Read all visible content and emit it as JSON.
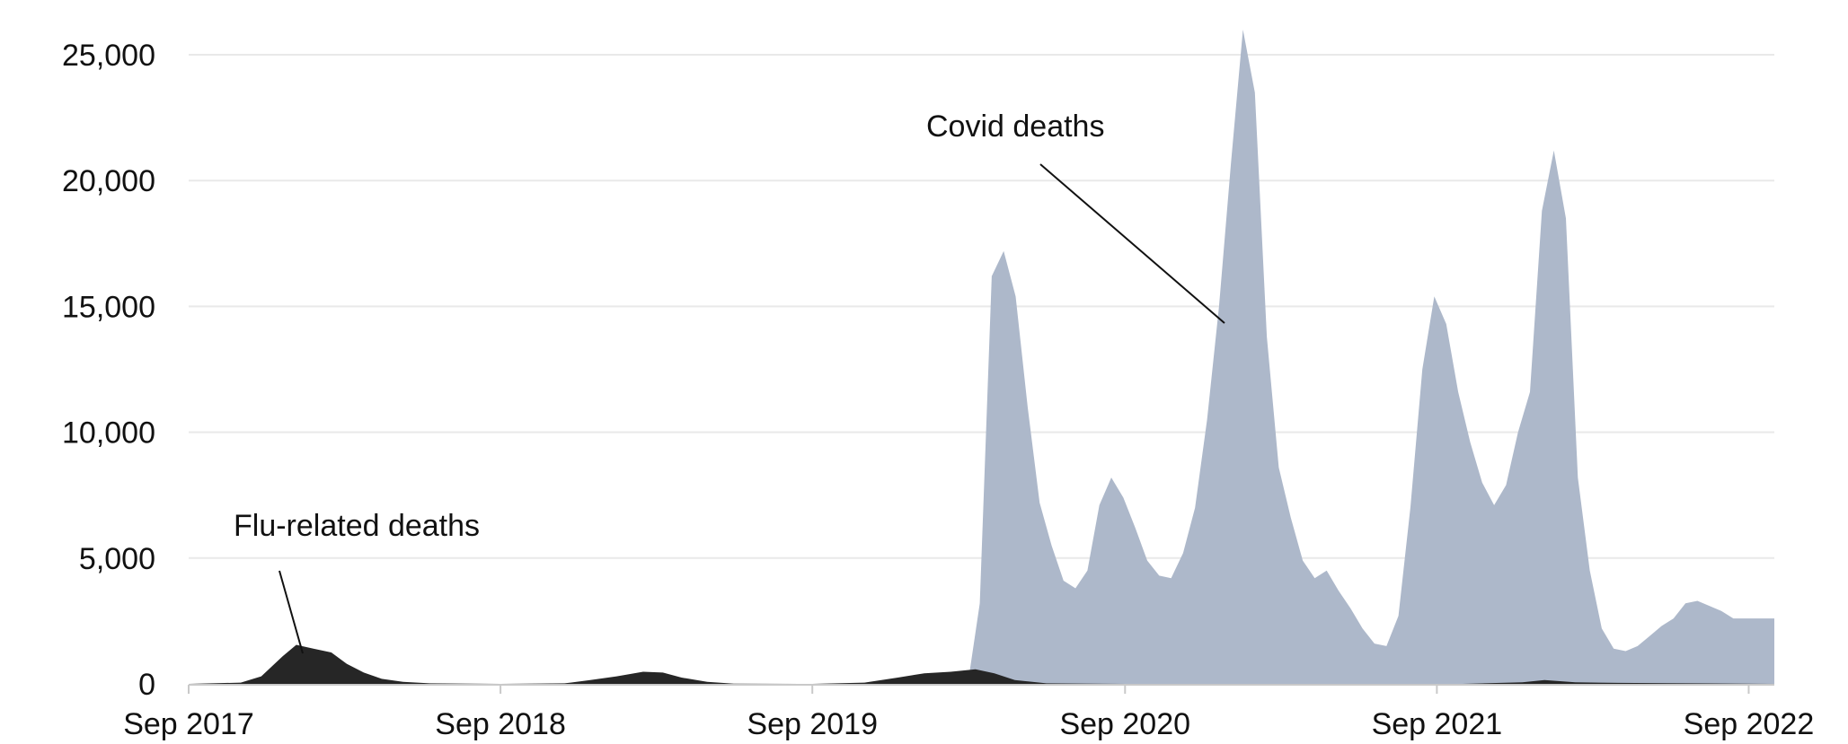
{
  "chart_data": {
    "type": "area",
    "x_unit": "date",
    "xlim": [
      "2017-09",
      "2022-10"
    ],
    "ylim": [
      0,
      26000
    ],
    "y_ticks": [
      0,
      5000,
      10000,
      15000,
      20000,
      25000
    ],
    "y_tick_labels": [
      "0",
      "5,000",
      "10,000",
      "15,000",
      "20,000",
      "25,000"
    ],
    "x_ticks": [
      "2017-09",
      "2018-09",
      "2019-09",
      "2020-09",
      "2021-09",
      "2022-09"
    ],
    "x_tick_labels": [
      "Sep 2017",
      "Sep 2018",
      "Sep 2019",
      "Sep 2020",
      "Sep 2021",
      "Sep 2022"
    ],
    "grid": true,
    "legend": "none",
    "series": [
      {
        "name": "Covid deaths",
        "color": "#adb8ca",
        "points": [
          [
            "2020-03-01",
            0
          ],
          [
            "2020-03-15",
            3200
          ],
          [
            "2020-03-29",
            16200
          ],
          [
            "2020-04-12",
            17200
          ],
          [
            "2020-04-26",
            15400
          ],
          [
            "2020-05-10",
            11000
          ],
          [
            "2020-05-24",
            7200
          ],
          [
            "2020-06-07",
            5500
          ],
          [
            "2020-06-21",
            4100
          ],
          [
            "2020-07-05",
            3800
          ],
          [
            "2020-07-19",
            4500
          ],
          [
            "2020-08-02",
            7100
          ],
          [
            "2020-08-16",
            8200
          ],
          [
            "2020-08-30",
            7400
          ],
          [
            "2020-09-13",
            6200
          ],
          [
            "2020-09-27",
            4900
          ],
          [
            "2020-10-11",
            4300
          ],
          [
            "2020-10-25",
            4200
          ],
          [
            "2020-11-08",
            5200
          ],
          [
            "2020-11-22",
            7000
          ],
          [
            "2020-12-06",
            10500
          ],
          [
            "2020-12-20",
            15000
          ],
          [
            "2021-01-03",
            20700
          ],
          [
            "2021-01-17",
            26000
          ],
          [
            "2021-01-31",
            23500
          ],
          [
            "2021-02-14",
            13800
          ],
          [
            "2021-02-28",
            8600
          ],
          [
            "2021-03-14",
            6600
          ],
          [
            "2021-03-28",
            4900
          ],
          [
            "2021-04-11",
            4200
          ],
          [
            "2021-04-25",
            4500
          ],
          [
            "2021-05-09",
            3700
          ],
          [
            "2021-05-23",
            3000
          ],
          [
            "2021-06-06",
            2200
          ],
          [
            "2021-06-20",
            1600
          ],
          [
            "2021-07-04",
            1500
          ],
          [
            "2021-07-18",
            2700
          ],
          [
            "2021-08-01",
            7000
          ],
          [
            "2021-08-15",
            12500
          ],
          [
            "2021-08-29",
            15400
          ],
          [
            "2021-09-12",
            14300
          ],
          [
            "2021-09-26",
            11600
          ],
          [
            "2021-10-10",
            9600
          ],
          [
            "2021-10-24",
            8000
          ],
          [
            "2021-11-07",
            7100
          ],
          [
            "2021-11-21",
            7900
          ],
          [
            "2021-12-05",
            10000
          ],
          [
            "2021-12-19",
            11600
          ],
          [
            "2022-01-02",
            18800
          ],
          [
            "2022-01-16",
            21200
          ],
          [
            "2022-01-30",
            18500
          ],
          [
            "2022-02-13",
            8200
          ],
          [
            "2022-02-27",
            4500
          ],
          [
            "2022-03-13",
            2200
          ],
          [
            "2022-03-27",
            1400
          ],
          [
            "2022-04-10",
            1300
          ],
          [
            "2022-04-24",
            1500
          ],
          [
            "2022-05-08",
            1900
          ],
          [
            "2022-05-22",
            2300
          ],
          [
            "2022-06-05",
            2600
          ],
          [
            "2022-06-19",
            3200
          ],
          [
            "2022-07-03",
            3300
          ],
          [
            "2022-07-17",
            3100
          ],
          [
            "2022-07-31",
            2900
          ],
          [
            "2022-08-14",
            2600
          ],
          [
            "2022-10-01",
            2600
          ],
          [
            "2022-10-01",
            0
          ]
        ]
      },
      {
        "name": "Flu-related deaths",
        "color": "#262626",
        "points": [
          [
            "2017-09-01",
            0
          ],
          [
            "2017-11-01",
            50
          ],
          [
            "2017-11-25",
            300
          ],
          [
            "2017-12-20",
            1100
          ],
          [
            "2018-01-05",
            1550
          ],
          [
            "2018-01-25",
            1400
          ],
          [
            "2018-02-15",
            1250
          ],
          [
            "2018-03-05",
            800
          ],
          [
            "2018-03-25",
            450
          ],
          [
            "2018-04-15",
            200
          ],
          [
            "2018-05-10",
            80
          ],
          [
            "2018-06-10",
            20
          ],
          [
            "2018-09-01",
            0
          ],
          [
            "2018-11-15",
            20
          ],
          [
            "2018-12-15",
            150
          ],
          [
            "2019-01-15",
            300
          ],
          [
            "2019-02-15",
            480
          ],
          [
            "2019-03-10",
            450
          ],
          [
            "2019-04-01",
            250
          ],
          [
            "2019-05-01",
            80
          ],
          [
            "2019-06-01",
            10
          ],
          [
            "2019-09-01",
            0
          ],
          [
            "2019-11-01",
            50
          ],
          [
            "2019-12-10",
            250
          ],
          [
            "2020-01-10",
            420
          ],
          [
            "2020-02-10",
            480
          ],
          [
            "2020-03-10",
            580
          ],
          [
            "2020-04-01",
            420
          ],
          [
            "2020-04-25",
            150
          ],
          [
            "2020-06-01",
            20
          ],
          [
            "2020-09-01",
            0
          ],
          [
            "2021-10-01",
            0
          ],
          [
            "2021-12-10",
            60
          ],
          [
            "2022-01-05",
            150
          ],
          [
            "2022-02-10",
            60
          ],
          [
            "2022-04-01",
            40
          ],
          [
            "2022-06-01",
            30
          ],
          [
            "2022-10-01",
            0
          ]
        ]
      }
    ],
    "annotations": [
      {
        "text": "Covid deaths",
        "series": "Covid deaths"
      },
      {
        "text": "Flu-related deaths",
        "series": "Flu-related deaths"
      }
    ]
  }
}
